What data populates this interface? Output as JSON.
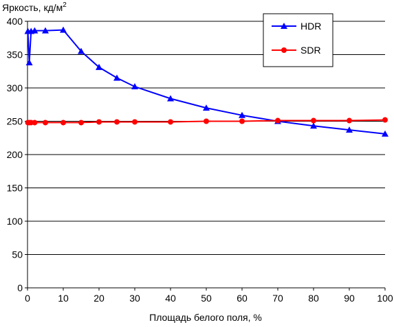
{
  "chart_data": {
    "type": "line",
    "title": "",
    "ylabel": "Яркость, кд/м",
    "ylabel_superscript": "2",
    "xlabel": "Площадь белого поля, %",
    "xlim": [
      0,
      100
    ],
    "ylim": [
      0,
      400
    ],
    "x_ticks": [
      "0",
      "10",
      "20",
      "30",
      "40",
      "50",
      "60",
      "70",
      "80",
      "90",
      "100"
    ],
    "y_ticks": [
      "0",
      "50",
      "100",
      "150",
      "200",
      "250",
      "300",
      "350",
      "400"
    ],
    "grid": "horizontal",
    "legend_position": "top-right",
    "series": [
      {
        "name": "HDR",
        "color": "#0000ff",
        "marker": "triangle",
        "x": [
          0.1,
          0.5,
          1,
          2,
          5,
          10,
          15,
          20,
          25,
          30,
          40,
          50,
          60,
          70,
          80,
          90,
          100
        ],
        "y": [
          385,
          338,
          385,
          386,
          386,
          387,
          355,
          331,
          315,
          302,
          284,
          270,
          259,
          250,
          243,
          237,
          231
        ]
      },
      {
        "name": "SDR",
        "color": "#ff0000",
        "marker": "circle",
        "x": [
          0.1,
          0.5,
          1,
          2,
          5,
          10,
          15,
          20,
          25,
          30,
          40,
          50,
          60,
          70,
          80,
          90,
          100
        ],
        "y": [
          248,
          248,
          248,
          248,
          248,
          248,
          248,
          249,
          249,
          249,
          249,
          250,
          250,
          251,
          251,
          251,
          252
        ]
      }
    ]
  }
}
